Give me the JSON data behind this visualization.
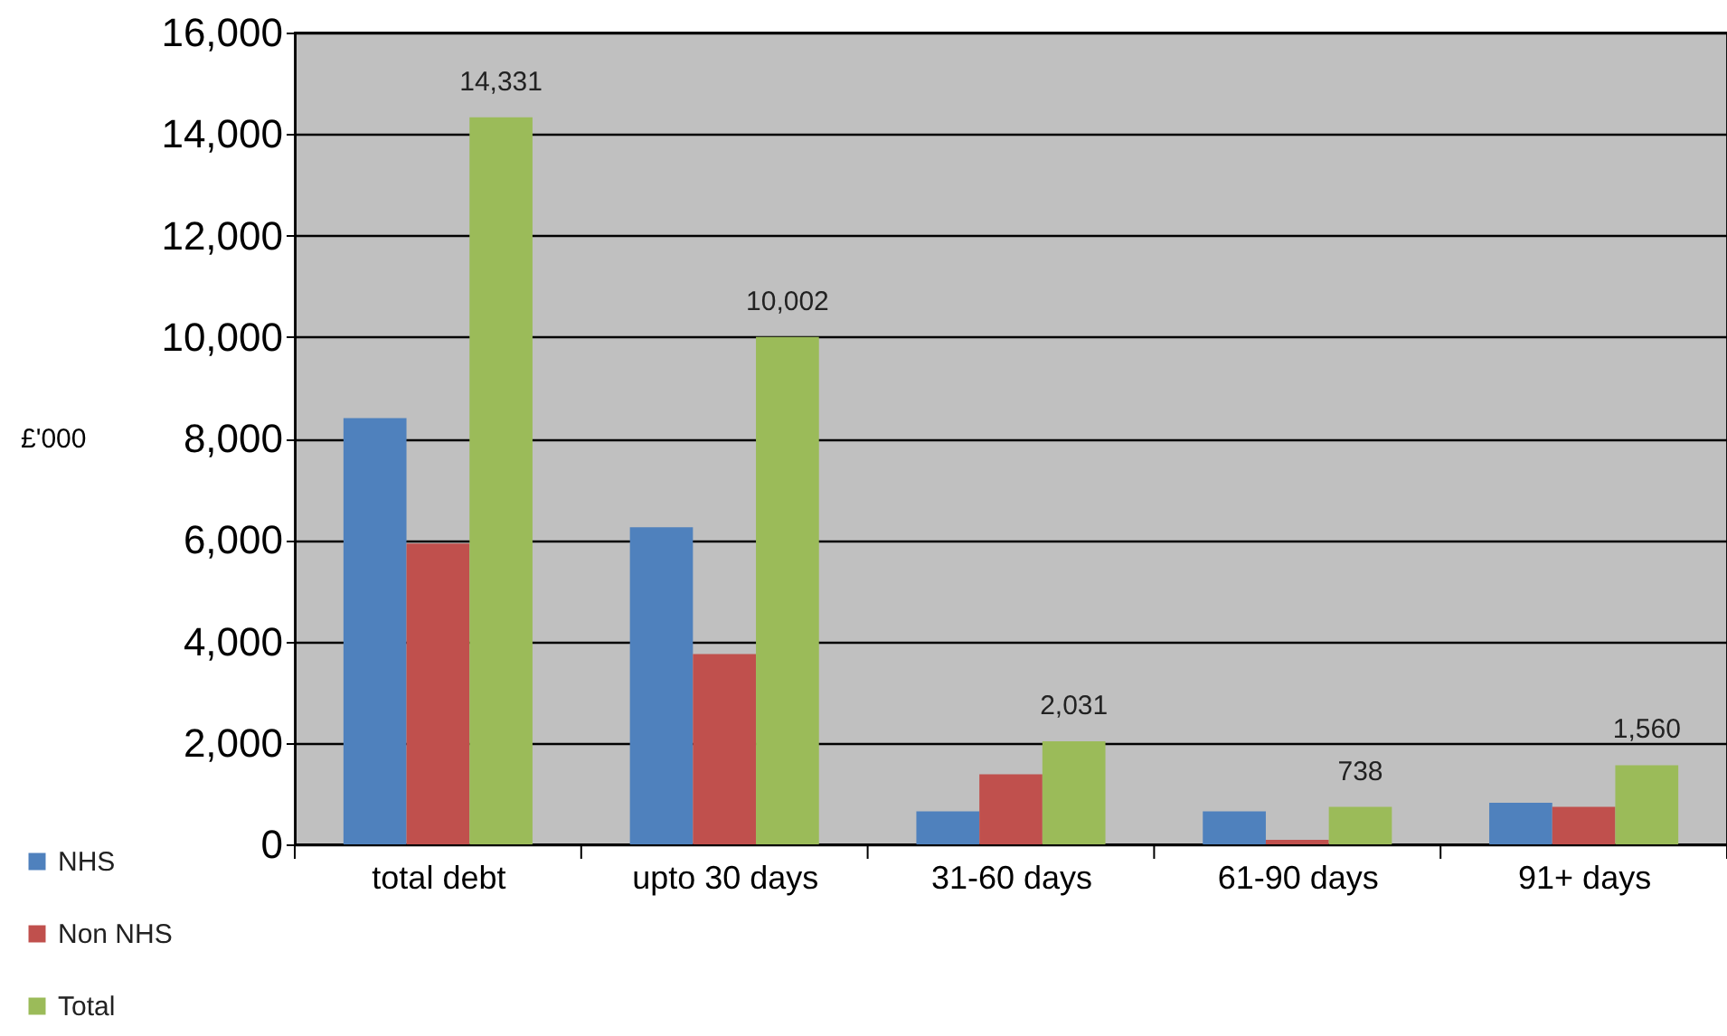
{
  "chart_data": {
    "type": "bar",
    "ylabel": "£'000",
    "categories": [
      "total debt",
      "upto 30 days",
      "31-60 days",
      "61-90 days",
      "91+ days"
    ],
    "series": [
      {
        "name": "NHS",
        "color": "#4f81bd",
        "values": [
          8400,
          6250,
          650,
          650,
          820
        ]
      },
      {
        "name": "Non NHS",
        "color": "#c0504d",
        "values": [
          5930,
          3750,
          1380,
          90,
          740
        ]
      },
      {
        "name": "Total",
        "color": "#9bbb59",
        "values": [
          14331,
          10002,
          2031,
          738,
          1560
        ],
        "value_labels": [
          "14,331",
          "10,002",
          "2,031",
          "738",
          "1,560"
        ]
      }
    ],
    "ylim": [
      0,
      16000
    ],
    "yticks": [
      0,
      {
        "value": 2000,
        "label": "2,000"
      },
      {
        "value": 4000,
        "label": "4,000"
      },
      {
        "value": 6000,
        "label": "6,000"
      },
      {
        "value": 8000,
        "label": "8,000"
      },
      {
        "value": 10000,
        "label": "10,000"
      },
      {
        "value": 12000,
        "label": "12,000"
      },
      {
        "value": 14000,
        "label": "14,000"
      },
      {
        "value": 16000,
        "label": "16,000"
      }
    ],
    "grid": "y",
    "legend": "bottom left"
  }
}
